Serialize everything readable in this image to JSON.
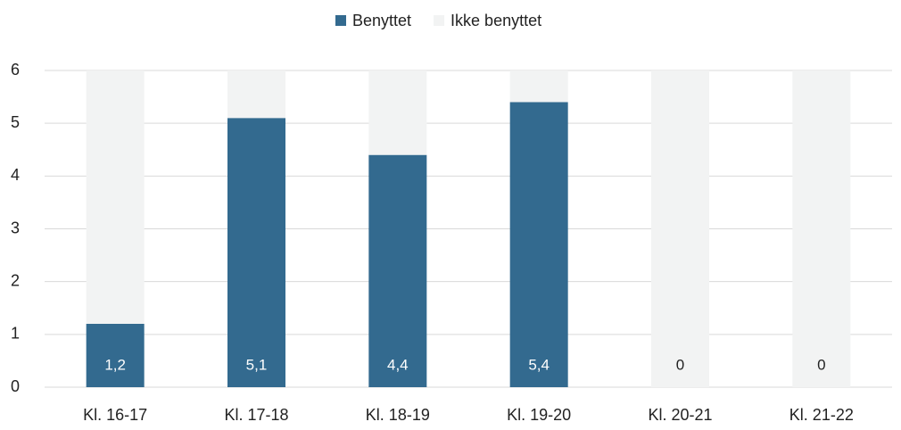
{
  "chart_data": {
    "type": "stacked_bar",
    "categories": [
      "Kl. 16-17",
      "Kl. 17-18",
      "Kl. 18-19",
      "Kl. 19-20",
      "Kl. 20-21",
      "Kl. 21-22"
    ],
    "series": [
      {
        "name": "Benyttet",
        "color": "#336a8f",
        "values": [
          1.2,
          5.1,
          4.4,
          5.4,
          0,
          0
        ],
        "value_labels": [
          "1,2",
          "5,1",
          "4,4",
          "5,4",
          "0",
          "0"
        ]
      },
      {
        "name": "Ikke benyttet",
        "color": "#f2f3f3",
        "values": [
          4.8,
          0.9,
          1.6,
          0.6,
          6,
          6
        ]
      }
    ],
    "ylim": [
      0,
      6
    ],
    "yticks": [
      0,
      1,
      2,
      3,
      4,
      5,
      6
    ],
    "grid": true,
    "legend": "top"
  }
}
